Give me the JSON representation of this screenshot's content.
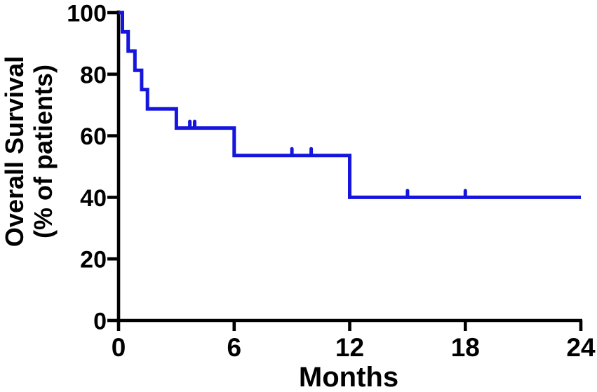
{
  "figure": {
    "background_color": "#ffffff",
    "axis_color": "#000000"
  },
  "chart_data": {
    "type": "line",
    "subtype": "kaplan-meier-step-curve",
    "title": "",
    "xlabel": "Months",
    "ylabel_line1": "Overall Survival",
    "ylabel_line2": "(% of patients)",
    "xlim": [
      0,
      24
    ],
    "ylim": [
      0,
      100
    ],
    "xticks": [
      0,
      6,
      12,
      18,
      24
    ],
    "yticks": [
      0,
      20,
      40,
      60,
      80,
      100
    ],
    "grid": false,
    "legend_position": "none",
    "series": [
      {
        "name": "overall-survival",
        "color": "#1515dd",
        "steps": [
          {
            "month": 0,
            "survival_pct": 100
          },
          {
            "month": 0.2,
            "survival_pct": 93.75
          },
          {
            "month": 0.5,
            "survival_pct": 87.5
          },
          {
            "month": 0.85,
            "survival_pct": 81.25
          },
          {
            "month": 1.2,
            "survival_pct": 75
          },
          {
            "month": 1.5,
            "survival_pct": 68.75
          },
          {
            "month": 3,
            "survival_pct": 62.5
          },
          {
            "month": 6,
            "survival_pct": 53.6
          },
          {
            "month": 12,
            "survival_pct": 40
          },
          {
            "month": 24,
            "survival_pct": 40
          }
        ],
        "censor_marks": [
          {
            "month": 3.7,
            "survival_pct": 62.5
          },
          {
            "month": 3.95,
            "survival_pct": 62.5
          },
          {
            "month": 9,
            "survival_pct": 53.6
          },
          {
            "month": 10,
            "survival_pct": 53.6
          },
          {
            "month": 15,
            "survival_pct": 40
          },
          {
            "month": 18,
            "survival_pct": 40
          }
        ]
      }
    ]
  }
}
